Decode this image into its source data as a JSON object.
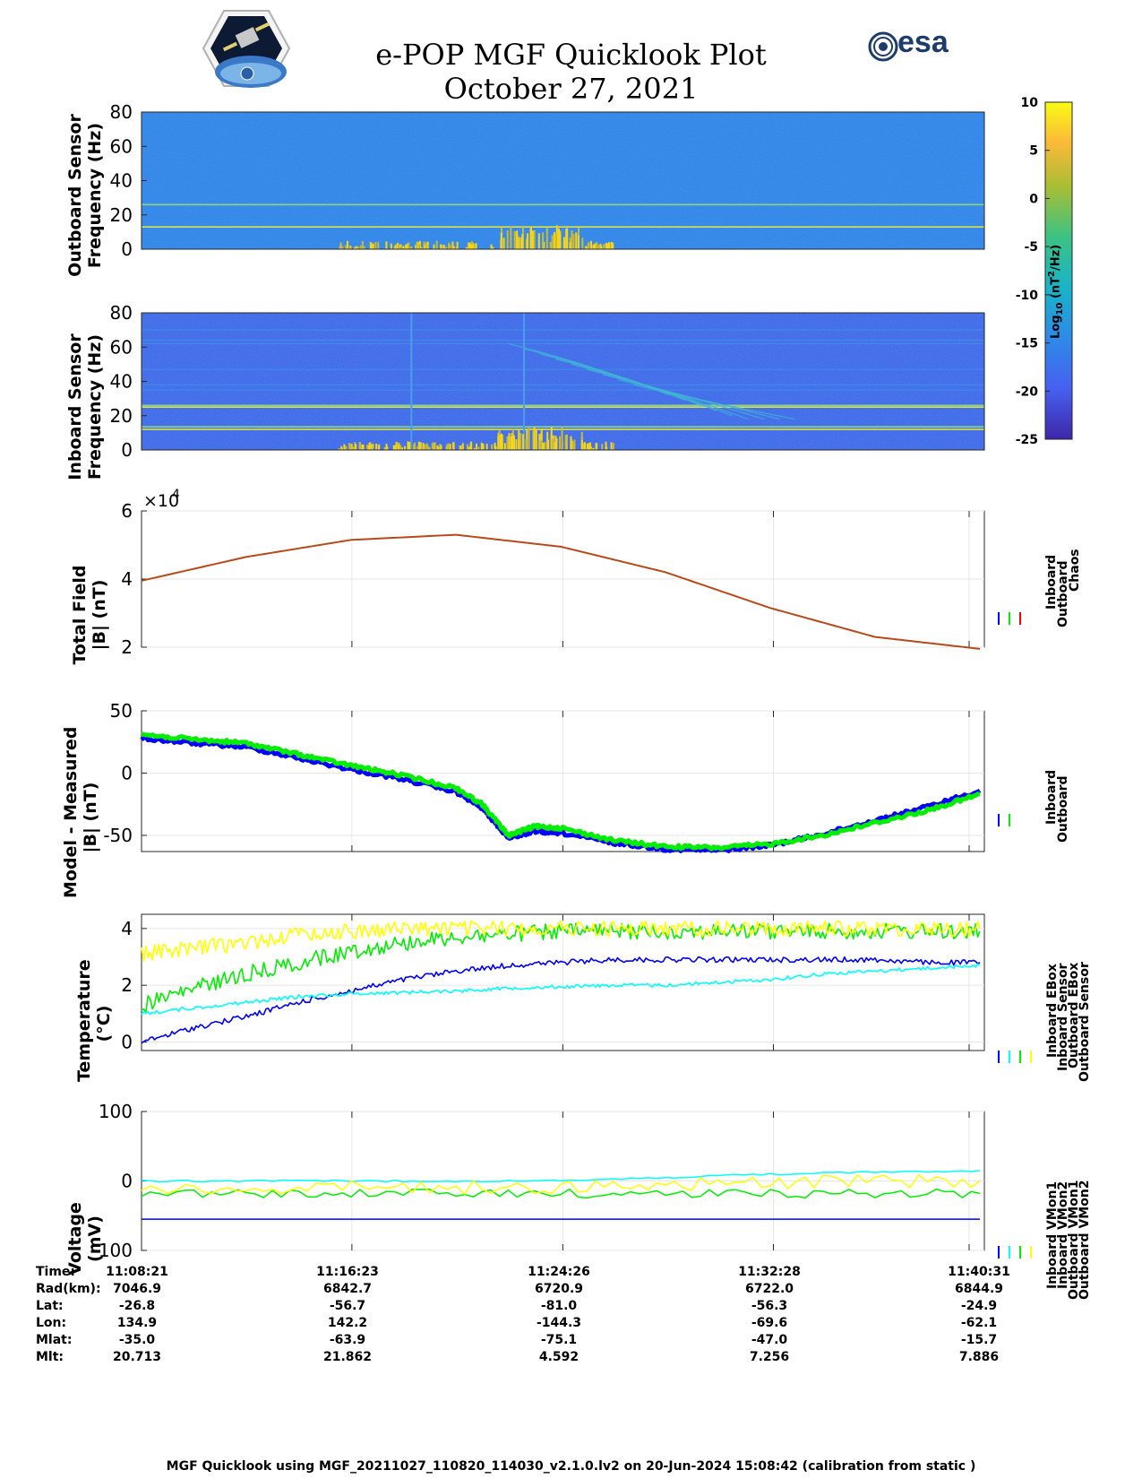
{
  "header": {
    "title": "e-POP MGF Quicklook Plot",
    "date": "October 27, 2021",
    "logo_right_text": "esa"
  },
  "colorbar": {
    "ticks": [
      10,
      5,
      0,
      -5,
      -10,
      -15,
      -20,
      -25
    ],
    "label_prefix": "Log",
    "label_sub": "10",
    "label_unit": " (nT",
    "label_sup": "2",
    "label_tail": "/Hz)"
  },
  "colors": {
    "inboard": "#0000ff",
    "outboard": "#00ee00",
    "chaos": "#ff0000",
    "cyan": "#00ffff",
    "yellow": "#ffff00",
    "curve": "#b84a1a"
  },
  "time_axis": {
    "ticks": [
      "11:08:21",
      "11:16:23",
      "11:24:26",
      "11:32:28",
      "11:40:31"
    ]
  },
  "chart_data": [
    {
      "type": "heatmap",
      "ylabel_line1": "Outboard Sensor",
      "ylabel_line2": "Frequency (Hz)",
      "ylim": [
        0,
        80
      ],
      "yticks": [
        0,
        20,
        40,
        60,
        80
      ]
    },
    {
      "type": "heatmap",
      "ylabel_line1": "Inboard Sensor",
      "ylabel_line2": "Frequency (Hz)",
      "ylim": [
        0,
        80
      ],
      "yticks": [
        0,
        20,
        40,
        60,
        80
      ]
    },
    {
      "type": "line",
      "ylabel_line1": "Total Field",
      "ylabel_line2": "|B| (nT)",
      "ylim": [
        2,
        6
      ],
      "yticks": [
        2,
        4,
        6
      ],
      "exponent_label": "×10",
      "exponent_power": "4",
      "legend": [
        "Inboard",
        "Outboard",
        "Chaos"
      ],
      "x_min": [
        0,
        4,
        8,
        12,
        16,
        20,
        24,
        28,
        32
      ],
      "values": [
        3.95,
        4.65,
        5.15,
        5.3,
        4.95,
        4.2,
        3.15,
        2.3,
        1.95
      ]
    },
    {
      "type": "line",
      "ylabel_line1": "Model - Measured",
      "ylabel_line2": "|B| (nT)",
      "ylim": [
        -63,
        50
      ],
      "yticks": [
        -50,
        0,
        50
      ],
      "legend": [
        "Inboard",
        "Outboard"
      ],
      "x_min": [
        0,
        2,
        4,
        6,
        8,
        10,
        12,
        13,
        14,
        15,
        16,
        18,
        20,
        22,
        24,
        26,
        28,
        30,
        32
      ],
      "series": [
        {
          "name": "Inboard",
          "values": [
            28,
            24,
            21,
            12,
            3,
            -5,
            -15,
            -28,
            -52,
            -47,
            -48,
            -56,
            -61,
            -62,
            -58,
            -49,
            -38,
            -27,
            -14
          ]
        },
        {
          "name": "Outboard",
          "values": [
            31,
            27,
            24,
            15,
            6,
            -2,
            -12,
            -25,
            -50,
            -43,
            -44,
            -54,
            -59,
            -60,
            -57,
            -50,
            -40,
            -30,
            -17
          ]
        }
      ]
    },
    {
      "type": "line",
      "ylabel_line1": "Temperature",
      "ylabel_line2": "(°C)",
      "ylim": [
        -0.3,
        4.5
      ],
      "yticks": [
        0,
        2,
        4
      ],
      "legend": [
        "Inboard EBox",
        "Inboard Sensor",
        "Outboard EBox",
        "Outboard Sensor"
      ],
      "x_min": [
        0,
        2,
        4,
        6,
        8,
        10,
        12,
        14,
        16,
        18,
        20,
        22,
        24,
        26,
        28,
        30,
        32
      ],
      "series": [
        {
          "name": "Inboard EBox",
          "values": [
            0.0,
            0.5,
            0.9,
            1.4,
            1.8,
            2.2,
            2.5,
            2.7,
            2.8,
            2.9,
            2.9,
            2.9,
            2.9,
            2.9,
            2.9,
            2.8,
            2.8
          ]
        },
        {
          "name": "Inboard Sensor",
          "values": [
            1.0,
            1.2,
            1.4,
            1.6,
            1.7,
            1.75,
            1.8,
            1.9,
            1.95,
            2.0,
            2.0,
            2.1,
            2.2,
            2.4,
            2.5,
            2.6,
            2.7
          ]
        },
        {
          "name": "Outboard EBox",
          "values": [
            1.3,
            1.9,
            2.4,
            2.8,
            3.2,
            3.5,
            3.7,
            3.8,
            3.9,
            3.9,
            3.9,
            3.9,
            3.9,
            3.9,
            3.9,
            3.9,
            3.9
          ]
        },
        {
          "name": "Outboard Sensor",
          "values": [
            3.1,
            3.3,
            3.5,
            3.8,
            3.9,
            4.0,
            4.0,
            4.0,
            4.0,
            4.0,
            4.0,
            4.0,
            4.0,
            4.0,
            4.0,
            4.0,
            4.0
          ]
        }
      ]
    },
    {
      "type": "line",
      "ylabel_line1": "Voltage",
      "ylabel_line2": "(mV)",
      "ylim": [
        -100,
        100
      ],
      "yticks": [
        -100,
        0,
        100
      ],
      "legend": [
        "Inboard VMon1",
        "Inboard VMon2",
        "Outboard VMon1",
        "Outboard VMon2"
      ],
      "x_min": [
        0,
        8,
        16,
        24,
        32
      ],
      "series": [
        {
          "name": "Inboard VMon1",
          "values": [
            -55,
            -55,
            -55,
            -55,
            -55
          ]
        },
        {
          "name": "Inboard VMon2",
          "values": [
            0,
            0,
            0,
            10,
            15
          ]
        },
        {
          "name": "Outboard VMon1",
          "values": [
            -18,
            -18,
            -18,
            -18,
            -18
          ]
        },
        {
          "name": "Outboard VMon2",
          "values": [
            -10,
            -10,
            -8,
            -2,
            0
          ]
        }
      ]
    }
  ],
  "orbit": {
    "labels": [
      "Time:",
      "Rad(km):",
      "Lat:",
      "Lon:",
      "Mlat:",
      "Mlt:"
    ],
    "columns": [
      [
        "11:08:21",
        "7046.9",
        "-26.8",
        "134.9",
        "-35.0",
        "20.713"
      ],
      [
        "11:16:23",
        "6842.7",
        "-56.7",
        "142.2",
        "-63.9",
        "21.862"
      ],
      [
        "11:24:26",
        "6720.9",
        "-81.0",
        "-144.3",
        "-75.1",
        "4.592"
      ],
      [
        "11:32:28",
        "6722.0",
        "-56.3",
        "-69.6",
        "-47.0",
        "7.256"
      ],
      [
        "11:40:31",
        "6844.9",
        "-24.9",
        "-62.1",
        "-15.7",
        "7.886"
      ]
    ]
  },
  "footer": "MGF Quicklook using MGF_20211027_110820_114030_v2.1.0.lv2 on 20-Jun-2024 15:08:42 (calibration from static )"
}
